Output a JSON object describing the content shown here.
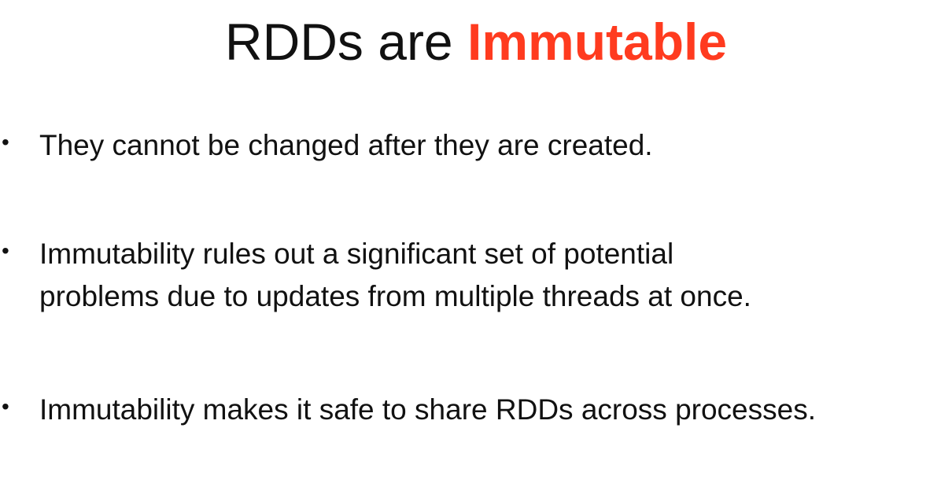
{
  "slide": {
    "title": {
      "prefix": "RDDs are ",
      "highlight": "Immutable"
    },
    "bullets": [
      {
        "symbol": "•",
        "lines": [
          "They cannot be changed after they are created."
        ]
      },
      {
        "symbol": "•",
        "lines": [
          "Immutability rules out a significant set of potential",
          "problems due to updates from multiple threads at once."
        ]
      },
      {
        "symbol": "•",
        "lines": [
          "Immutability makes it safe to share RDDs across processes."
        ]
      }
    ]
  },
  "colors": {
    "accent": "#ff3b1f",
    "text": "#111111",
    "background": "#ffffff"
  }
}
